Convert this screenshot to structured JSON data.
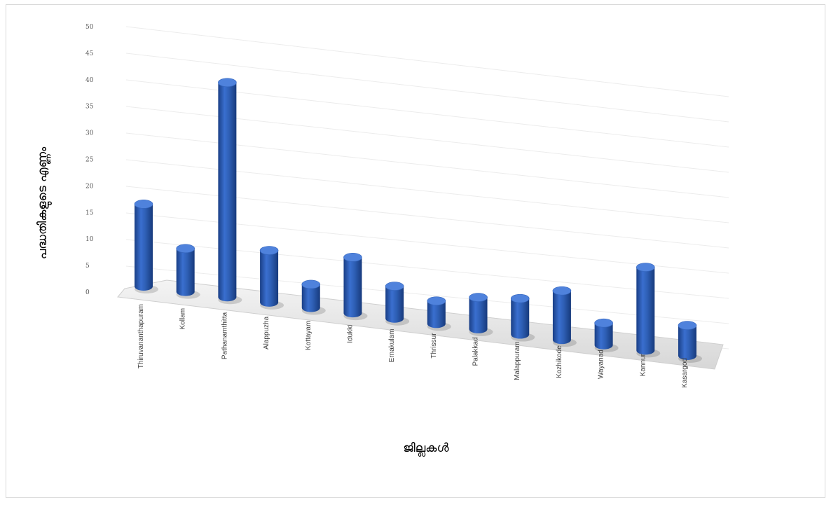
{
  "chart_data": {
    "type": "bar",
    "title": "",
    "xlabel": "ജില്ലകൾ",
    "ylabel": "പദ്ധതികളുടെ എണ്ണം",
    "ylim": [
      0,
      50
    ],
    "y_ticks": [
      "0",
      "5",
      "10",
      "15",
      "20",
      "25",
      "30",
      "35",
      "40",
      "45",
      "50"
    ],
    "grid": true,
    "categories": [
      "Thiruvananthapuram",
      "Kollam",
      "Pathanamthitta",
      "Alappuzha",
      "Kottayam",
      "Idukki",
      "Ernakulam",
      "Thrissur",
      "Palakkad",
      "Malappuram",
      "Kozhikode",
      "Wayanad",
      "Kannur",
      "Kasargod"
    ],
    "values": [
      17,
      9,
      45,
      11,
      5,
      12,
      7,
      5,
      7,
      8,
      11,
      5,
      19,
      7
    ],
    "bar_color": "#2e5fb5"
  }
}
